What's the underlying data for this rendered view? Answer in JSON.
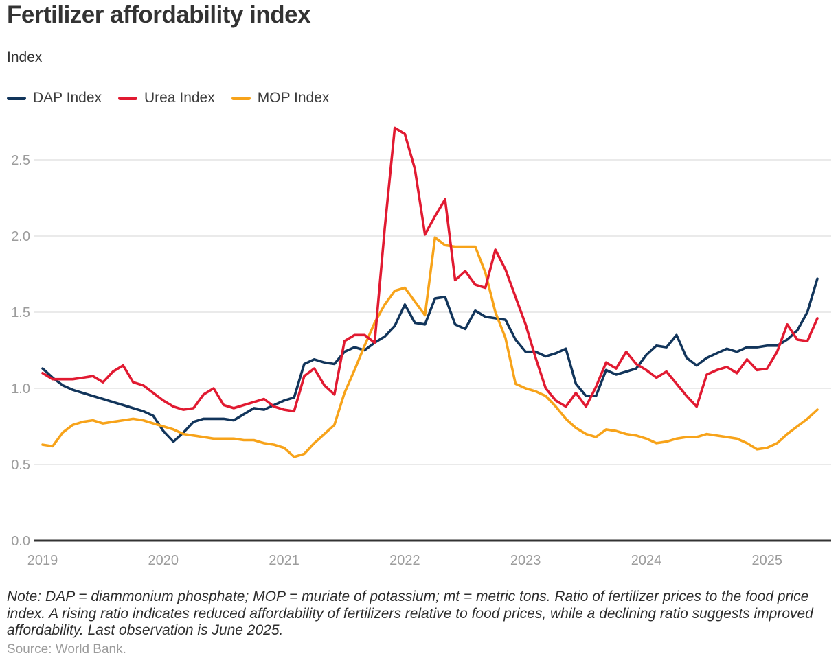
{
  "page": {
    "title": "Fertilizer affordability index",
    "y_axis_unit_label": "Index",
    "note": "Note: DAP = diammonium phosphate; MOP = muriate of potassium; mt = metric tons. Ratio of fertilizer prices to the food price index. A rising ratio indicates reduced affordability of fertilizers relative to food prices, while a declining ratio suggests improved affordability. Last observation is June 2025.",
    "source": "Source: World Bank."
  },
  "chart_data": {
    "type": "line",
    "title": "Fertilizer affordability index",
    "ylabel": "Index",
    "x_frequency": "monthly",
    "x_start": "2019-01",
    "x_end": "2025-06",
    "x_tick_labels": [
      "2019",
      "2020",
      "2021",
      "2022",
      "2023",
      "2024",
      "2025"
    ],
    "y_tick_labels": [
      "0.0",
      "0.5",
      "1.0",
      "1.5",
      "2.0",
      "2.5"
    ],
    "ylim": [
      0,
      2.78
    ],
    "grid": "horizontal",
    "legend_position": "top-left",
    "axis_text_color": "#9c9c9c",
    "gridline_color": "#e3e3e3",
    "axis_line_color": "#333333",
    "series": [
      {
        "name": "DAP Index",
        "color": "#12355b",
        "values": [
          1.13,
          1.07,
          1.02,
          0.99,
          0.97,
          0.95,
          0.93,
          0.91,
          0.89,
          0.87,
          0.85,
          0.82,
          0.72,
          0.65,
          0.71,
          0.78,
          0.8,
          0.8,
          0.8,
          0.79,
          0.83,
          0.87,
          0.86,
          0.89,
          0.92,
          0.94,
          1.16,
          1.19,
          1.17,
          1.16,
          1.24,
          1.27,
          1.25,
          1.3,
          1.34,
          1.41,
          1.55,
          1.43,
          1.42,
          1.59,
          1.6,
          1.42,
          1.39,
          1.51,
          1.47,
          1.46,
          1.45,
          1.32,
          1.24,
          1.24,
          1.21,
          1.23,
          1.26,
          1.03,
          0.95,
          0.95,
          1.12,
          1.09,
          1.11,
          1.13,
          1.22,
          1.28,
          1.27,
          1.35,
          1.2,
          1.15,
          1.2,
          1.23,
          1.26,
          1.24,
          1.27,
          1.27,
          1.28,
          1.28,
          1.32,
          1.38,
          1.5,
          1.72
        ]
      },
      {
        "name": "Urea Index",
        "color": "#e11a31",
        "values": [
          1.1,
          1.06,
          1.06,
          1.06,
          1.07,
          1.08,
          1.04,
          1.11,
          1.15,
          1.04,
          1.02,
          0.97,
          0.92,
          0.88,
          0.86,
          0.87,
          0.96,
          1.0,
          0.89,
          0.87,
          0.89,
          0.91,
          0.93,
          0.88,
          0.86,
          0.85,
          1.08,
          1.13,
          1.02,
          0.96,
          1.31,
          1.35,
          1.35,
          1.3,
          2.05,
          2.71,
          2.67,
          2.44,
          2.01,
          2.13,
          2.24,
          1.71,
          1.77,
          1.68,
          1.66,
          1.91,
          1.78,
          1.6,
          1.42,
          1.2,
          1.0,
          0.92,
          0.88,
          0.97,
          0.88,
          1.01,
          1.17,
          1.13,
          1.24,
          1.16,
          1.12,
          1.07,
          1.11,
          1.03,
          0.95,
          0.88,
          1.09,
          1.12,
          1.14,
          1.1,
          1.19,
          1.12,
          1.13,
          1.24,
          1.42,
          1.32,
          1.31,
          1.46
        ]
      },
      {
        "name": "MOP Index",
        "color": "#f7a31a",
        "values": [
          0.63,
          0.62,
          0.71,
          0.76,
          0.78,
          0.79,
          0.77,
          0.78,
          0.79,
          0.8,
          0.79,
          0.77,
          0.75,
          0.73,
          0.7,
          0.69,
          0.68,
          0.67,
          0.67,
          0.67,
          0.66,
          0.66,
          0.64,
          0.63,
          0.61,
          0.55,
          0.57,
          0.64,
          0.7,
          0.76,
          0.97,
          1.12,
          1.28,
          1.43,
          1.55,
          1.64,
          1.66,
          1.57,
          1.48,
          1.99,
          1.94,
          1.93,
          1.93,
          1.93,
          1.76,
          1.5,
          1.33,
          1.03,
          1.0,
          0.98,
          0.95,
          0.88,
          0.8,
          0.74,
          0.7,
          0.68,
          0.73,
          0.72,
          0.7,
          0.69,
          0.67,
          0.64,
          0.65,
          0.67,
          0.68,
          0.68,
          0.7,
          0.69,
          0.68,
          0.67,
          0.64,
          0.6,
          0.61,
          0.64,
          0.7,
          0.75,
          0.8,
          0.86
        ]
      }
    ],
    "note": "Note: DAP = diammonium phosphate; MOP = muriate of potassium; mt = metric tons. Ratio of fertilizer prices to the food price index. A rising ratio indicates reduced affordability of fertilizers relative to food prices, while a declining ratio suggests improved affordability. Last observation is June 2025.",
    "source": "Source: World Bank."
  }
}
